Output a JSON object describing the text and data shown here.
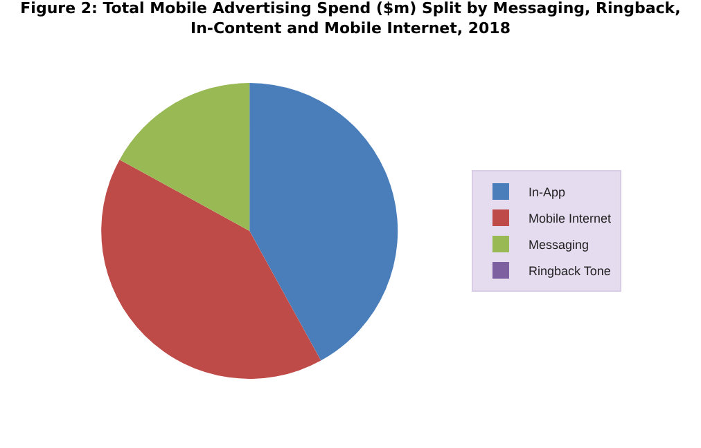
{
  "chart_data": {
    "type": "pie",
    "title": "Figure 2: Total Mobile Advertising Spend ($m) Split by Messaging, Ringback,\nIn-Content and Mobile Internet, 2018",
    "categories": [
      "In-App",
      "Mobile Internet",
      "Messaging",
      "Ringback Tone"
    ],
    "values": [
      42,
      41,
      17,
      0
    ],
    "colors": [
      "#4a7ebb",
      "#be4b48",
      "#98b954",
      "#7d60a0"
    ],
    "legend": "right"
  }
}
